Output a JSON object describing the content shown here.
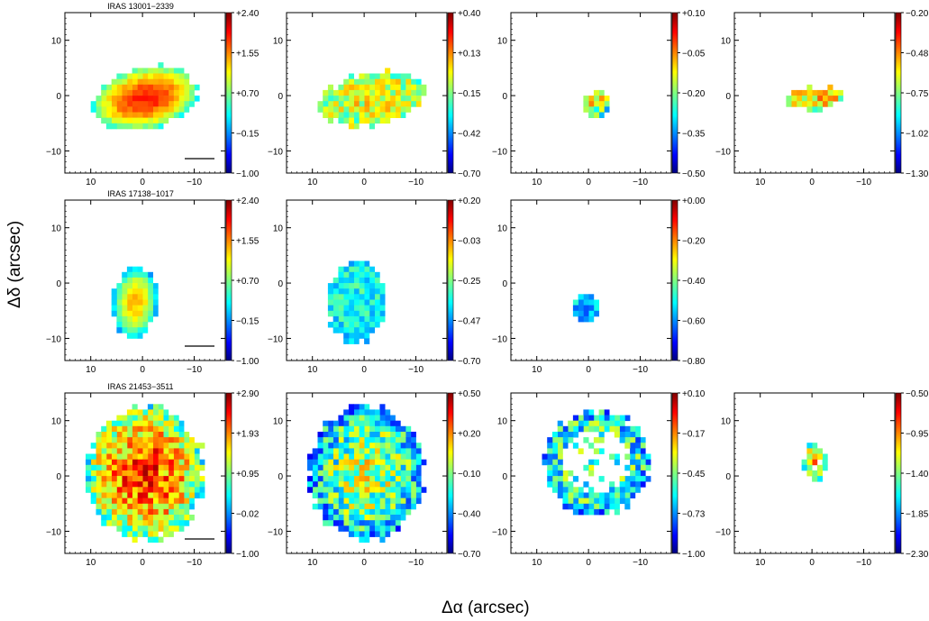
{
  "figure": {
    "xlabel": "Δα (arcsec)",
    "ylabel": "Δδ (arcsec)"
  },
  "chart_data": {
    "type": "heatmap",
    "x_ticks": [
      "10",
      "0",
      "−10"
    ],
    "y_ticks": [
      "10",
      "0",
      "−10"
    ],
    "xlim": [
      15,
      -16
    ],
    "ylim": [
      -14,
      15
    ],
    "colormap": [
      "#000080",
      "#0000ff",
      "#00a0ff",
      "#00ffff",
      "#a0ff60",
      "#ffff00",
      "#ff8000",
      "#ff0000",
      "#800000"
    ],
    "rows": [
      {
        "name": "IRAS 13001−2339",
        "panels": [
          {
            "colorbar": [
              "+2.40",
              "+1.55",
              "+0.70",
              "−0.15",
              "−1.00"
            ],
            "scale_bar": true
          },
          {
            "colorbar": [
              "+0.40",
              "+0.13",
              "−0.15",
              "−0.42",
              "−0.70"
            ]
          },
          {
            "colorbar": [
              "+0.10",
              "−0.05",
              "−0.20",
              "−0.35",
              "−0.50"
            ]
          },
          {
            "colorbar": [
              "−0.20",
              "−0.48",
              "−0.75",
              "−1.02",
              "−1.30"
            ]
          }
        ]
      },
      {
        "name": "IRAS 17138−1017",
        "panels": [
          {
            "colorbar": [
              "+2.40",
              "+1.55",
              "+0.70",
              "−0.15",
              "−1.00"
            ],
            "scale_bar": true
          },
          {
            "colorbar": [
              "+0.20",
              "−0.03",
              "−0.25",
              "−0.47",
              "−0.70"
            ]
          },
          {
            "colorbar": [
              "+0.00",
              "−0.20",
              "−0.40",
              "−0.60",
              "−0.80"
            ]
          }
        ]
      },
      {
        "name": "IRAS 21453−3511",
        "panels": [
          {
            "colorbar": [
              "+2.90",
              "+1.93",
              "+0.95",
              "−0.02",
              "−1.00"
            ],
            "scale_bar": true
          },
          {
            "colorbar": [
              "+0.50",
              "+0.20",
              "−0.10",
              "−0.40",
              "−0.70"
            ]
          },
          {
            "colorbar": [
              "+0.10",
              "−0.17",
              "−0.45",
              "−0.73",
              "−1.00"
            ]
          },
          {
            "colorbar": [
              "−0.50",
              "−0.95",
              "−1.40",
              "−1.85",
              "−2.30"
            ]
          }
        ]
      }
    ]
  }
}
